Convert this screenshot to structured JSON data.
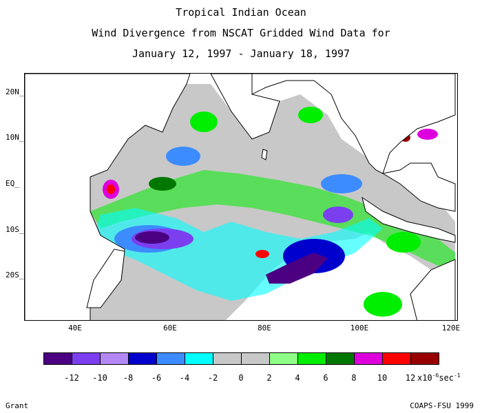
{
  "title": {
    "line1": "Tropical Indian Ocean",
    "line2": "Wind Divergence from NSCAT Gridded Wind Data for",
    "line3": "January 12, 1997 - January 18, 1997"
  },
  "map": {
    "lat_labels": [
      "20N",
      "10N",
      "EQ",
      "10S",
      "20S"
    ],
    "lon_labels": [
      "40E",
      "60E",
      "80E",
      "100E",
      "120E"
    ]
  },
  "legend": {
    "colors": [
      "#4b0082",
      "#7b3ff0",
      "#b388f4",
      "#0000cd",
      "#3c8cff",
      "#00ffff",
      "#c8c8c8",
      "#c8c8c8",
      "#90ff88",
      "#00ee00",
      "#007800",
      "#dd00dd",
      "#ff0000",
      "#990000"
    ],
    "labels": [
      "-12",
      "-10",
      "-8",
      "-6",
      "-4",
      "-2",
      "0",
      "2",
      "4",
      "6",
      "8",
      "10",
      "12"
    ],
    "unit_prefix": "x10",
    "unit_exp1": "-6",
    "unit_mid": "sec",
    "unit_exp2": "-1"
  },
  "footer": {
    "left": "Grant",
    "right": "COAPS-FSU 1999"
  }
}
